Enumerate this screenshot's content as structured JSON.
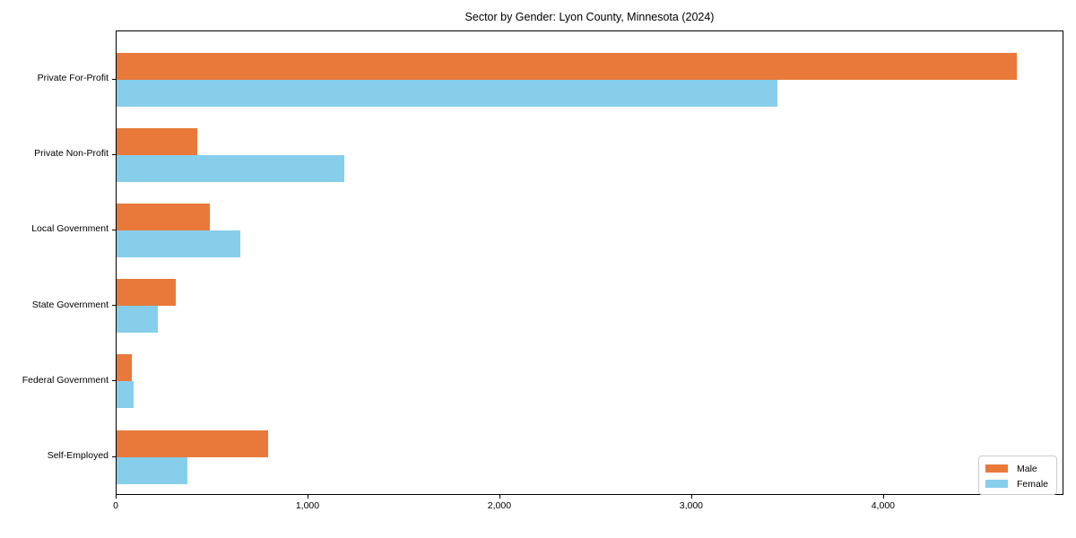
{
  "chart_data": {
    "type": "bar",
    "orientation": "horizontal",
    "title": "Sector by Gender: Lyon County, Minnesota (2024)",
    "categories": [
      "Private For-Profit",
      "Private Non-Profit",
      "Local Government",
      "State Government",
      "Federal Government",
      "Self-Employed"
    ],
    "series": [
      {
        "name": "Male",
        "color": "#E8793B",
        "values": [
          4700,
          420,
          485,
          310,
          80,
          790
        ]
      },
      {
        "name": "Female",
        "color": "#87CEEB",
        "values": [
          3450,
          1190,
          645,
          215,
          90,
          370
        ]
      }
    ],
    "xlabel": "",
    "ylabel": "",
    "xlim": [
      0,
      4940
    ],
    "xticks": [
      0,
      1000,
      2000,
      3000,
      4000
    ],
    "xtick_labels": [
      "0",
      "1,000",
      "2,000",
      "3,000",
      "4,000"
    ],
    "grid": false,
    "legend_position": "lower right",
    "plot_background": "#ffffff",
    "spine_color": "#000000"
  }
}
